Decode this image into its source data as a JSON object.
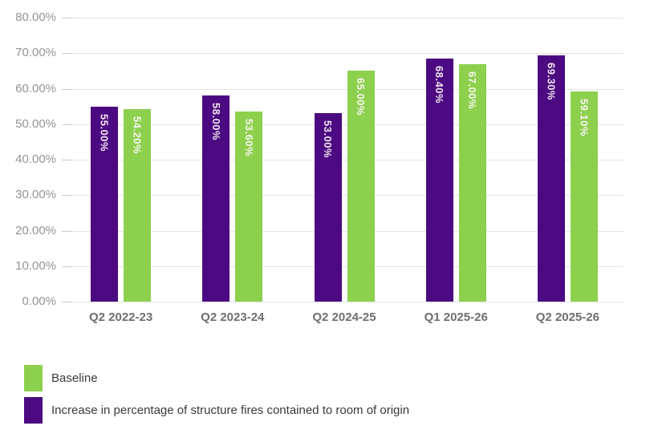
{
  "chart_data": {
    "type": "bar",
    "title": "",
    "xlabel": "",
    "ylabel": "",
    "categories": [
      "Q2 2022-23",
      "Q2 2023-24",
      "Q2 2024-25",
      "Q1 2025-26",
      "Q2 2025-26"
    ],
    "series": [
      {
        "name": "Increase in percentage of structure fires contained to room of origin",
        "color": "#4b0a81",
        "label_color": "#f1e5ed",
        "values": [
          55.0,
          58.0,
          53.0,
          68.4,
          69.3
        ],
        "data_labels": [
          "55.00%",
          "58.00%",
          "53.00%",
          "68.40%",
          "69.30%"
        ]
      },
      {
        "name": "Baseline",
        "color": "#8dd04e",
        "label_color": "#f6f6ee",
        "values": [
          54.2,
          53.6,
          65.0,
          67.0,
          59.1
        ],
        "data_labels": [
          "54.20%",
          "53.60%",
          "65.00%",
          "67.00%",
          "59.10%"
        ]
      }
    ],
    "legend": [
      {
        "label": "Baseline",
        "color": "#8dd04e"
      },
      {
        "label": "Increase in percentage of structure fires contained to room of origin",
        "color": "#4b0a81"
      }
    ],
    "legend_position": "bottom-left",
    "grid": true,
    "ylim": [
      0,
      80
    ],
    "ytick_step": 10,
    "ytick_labels": [
      "80.00%",
      "70.00%",
      "60.00%",
      "50.00%",
      "40.00%",
      "30.00%",
      "20.00%",
      "10.00%",
      "0.00%"
    ]
  }
}
